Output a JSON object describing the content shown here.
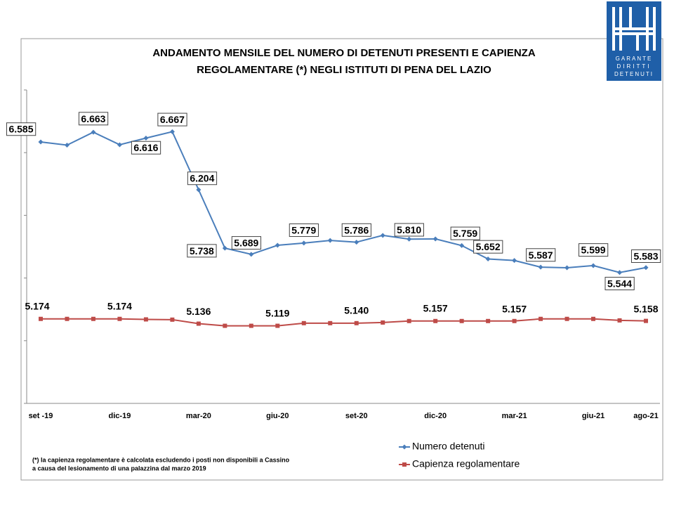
{
  "logo": [
    "GARANTE",
    "DIRITTI",
    "DETENUTI"
  ],
  "footnote": [
    "(*) la capienza regolamentare è calcolata escludendo i posti non disponibili a Cassino",
    "a causa del lesionamento di una palazzina dal marzo 2019"
  ],
  "chart_data": {
    "type": "line",
    "title": [
      "ANDAMENTO MENSILE  DEL NUMERO DI DETENUTI PRESENTI E CAPIENZA",
      "REGOLAMENTARE (*) NEGLI ISTITUTI DI PENA DEL LAZIO"
    ],
    "categories": [
      "set -19",
      null,
      null,
      "dic-19",
      null,
      null,
      "mar-20",
      null,
      null,
      "giu-20",
      null,
      null,
      "set-20",
      null,
      null,
      "dic-20",
      null,
      null,
      "mar-21",
      null,
      null,
      "giu-21",
      null,
      "ago-21"
    ],
    "series": [
      {
        "name": "Numero detenuti",
        "color": "#4a7ebb",
        "values": [
          6585,
          6560,
          6663,
          6563,
          6616,
          6667,
          6204,
          5738,
          5689,
          5761,
          5779,
          5800,
          5786,
          5840,
          5810,
          5812,
          5759,
          5652,
          5640,
          5587,
          5582,
          5599,
          5544,
          5583
        ],
        "value_labels": [
          "6.585",
          null,
          "6.663",
          null,
          "6.616",
          "6.667",
          "6.204",
          "5.738",
          "5.689",
          null,
          "5.779",
          null,
          "5.786",
          null,
          "5.810",
          null,
          "5.759",
          "5.652",
          null,
          "5.587",
          null,
          "5.599",
          "5.544",
          "5.583"
        ]
      },
      {
        "name": "Capienza regolamentare",
        "color": "#be4b48",
        "values": [
          5174,
          5174,
          5174,
          5174,
          5170,
          5168,
          5136,
          5119,
          5119,
          5119,
          5140,
          5140,
          5140,
          5145,
          5157,
          5157,
          5157,
          5157,
          5157,
          5174,
          5174,
          5174,
          5162,
          5158
        ],
        "value_labels": [
          "5.174",
          null,
          null,
          "5.174",
          null,
          null,
          "5.136",
          null,
          null,
          "5.119",
          null,
          null,
          "5.140",
          null,
          null,
          "5.157",
          null,
          null,
          "5.157",
          null,
          null,
          null,
          null,
          "5.158"
        ]
      }
    ],
    "ylim": [
      4500,
      7000
    ],
    "yticks": [
      4500,
      5000,
      5500,
      6000,
      6500,
      7000
    ],
    "legend": "bottom-right"
  }
}
